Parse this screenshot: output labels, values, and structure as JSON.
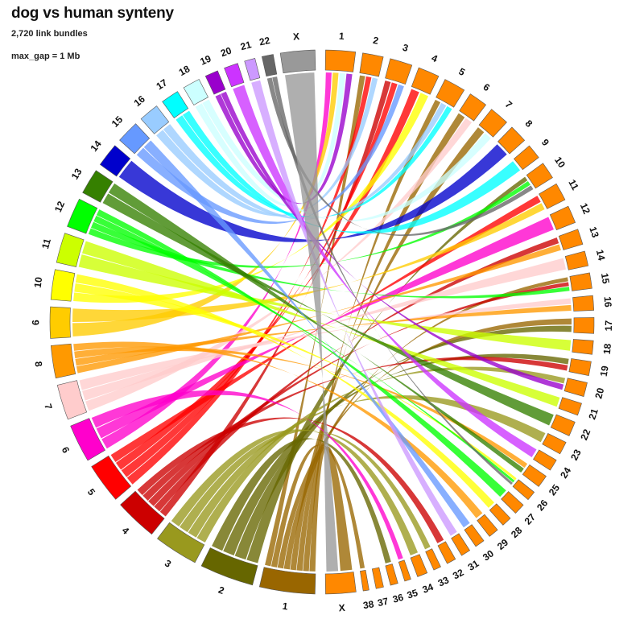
{
  "title": "dog vs human synteny",
  "subtitle": "2,720 link bundles",
  "note": "max_gap = 1 Mb",
  "human_chromosomes": [
    {
      "label": "1",
      "color": "#996600",
      "size": 249
    },
    {
      "label": "2",
      "color": "#666600",
      "size": 243
    },
    {
      "label": "3",
      "color": "#99991e",
      "size": 198
    },
    {
      "label": "4",
      "color": "#cc0000",
      "size": 191
    },
    {
      "label": "5",
      "color": "#ff0000",
      "size": 181
    },
    {
      "label": "6",
      "color": "#ff00cc",
      "size": 171
    },
    {
      "label": "7",
      "color": "#ffcccc",
      "size": 159
    },
    {
      "label": "8",
      "color": "#ff9900",
      "size": 146
    },
    {
      "label": "9",
      "color": "#ffcc00",
      "size": 141
    },
    {
      "label": "10",
      "color": "#ffff00",
      "size": 135
    },
    {
      "label": "11",
      "color": "#ccff00",
      "size": 135
    },
    {
      "label": "12",
      "color": "#00ff00",
      "size": 133
    },
    {
      "label": "13",
      "color": "#358000",
      "size": 115
    },
    {
      "label": "14",
      "color": "#0000cc",
      "size": 107
    },
    {
      "label": "15",
      "color": "#6699ff",
      "size": 102
    },
    {
      "label": "16",
      "color": "#99ccff",
      "size": 90
    },
    {
      "label": "17",
      "color": "#00ffff",
      "size": 81
    },
    {
      "label": "18",
      "color": "#ccffff",
      "size": 78
    },
    {
      "label": "19",
      "color": "#9900cc",
      "size": 59
    },
    {
      "label": "20",
      "color": "#cc33ff",
      "size": 63
    },
    {
      "label": "21",
      "color": "#cc99ff",
      "size": 48
    },
    {
      "label": "22",
      "color": "#666666",
      "size": 51
    },
    {
      "label": "X",
      "color": "#999999",
      "size": 155
    }
  ],
  "dog_chromosomes": [
    {
      "label": "1",
      "size": 122
    },
    {
      "label": "2",
      "size": 85
    },
    {
      "label": "3",
      "size": 92
    },
    {
      "label": "4",
      "size": 88
    },
    {
      "label": "5",
      "size": 89
    },
    {
      "label": "6",
      "size": 77
    },
    {
      "label": "7",
      "size": 81
    },
    {
      "label": "8",
      "size": 74
    },
    {
      "label": "9",
      "size": 61
    },
    {
      "label": "10",
      "size": 70
    },
    {
      "label": "11",
      "size": 74
    },
    {
      "label": "12",
      "size": 72
    },
    {
      "label": "13",
      "size": 64
    },
    {
      "label": "14",
      "size": 61
    },
    {
      "label": "15",
      "size": 64
    },
    {
      "label": "16",
      "size": 60
    },
    {
      "label": "17",
      "size": 65
    },
    {
      "label": "18",
      "size": 56
    },
    {
      "label": "19",
      "size": 58
    },
    {
      "label": "20",
      "size": 58
    },
    {
      "label": "21",
      "size": 51
    },
    {
      "label": "22",
      "size": 61
    },
    {
      "label": "23",
      "size": 53
    },
    {
      "label": "24",
      "size": 48
    },
    {
      "label": "25",
      "size": 52
    },
    {
      "label": "26",
      "size": 39
    },
    {
      "label": "27",
      "size": 46
    },
    {
      "label": "28",
      "size": 41
    },
    {
      "label": "29",
      "size": 42
    },
    {
      "label": "30",
      "size": 40
    },
    {
      "label": "31",
      "size": 39
    },
    {
      "label": "32",
      "size": 38
    },
    {
      "label": "33",
      "size": 31
    },
    {
      "label": "34",
      "size": 42
    },
    {
      "label": "35",
      "size": 26
    },
    {
      "label": "36",
      "size": 31
    },
    {
      "label": "37",
      "size": 31
    },
    {
      "label": "38",
      "size": 24
    },
    {
      "label": "X",
      "size": 124
    }
  ],
  "dog_color": "#ff8800",
  "links": [
    {
      "h": "1",
      "d": "X"
    },
    {
      "h": "1",
      "d": "5"
    },
    {
      "h": "1",
      "d": "6"
    },
    {
      "h": "1",
      "d": "7"
    },
    {
      "h": "1",
      "d": "15"
    },
    {
      "h": "1",
      "d": "17"
    },
    {
      "h": "1",
      "d": "38"
    },
    {
      "h": "1",
      "d": "2"
    },
    {
      "h": "2",
      "d": "10"
    },
    {
      "h": "2",
      "d": "17"
    },
    {
      "h": "2",
      "d": "19"
    },
    {
      "h": "2",
      "d": "36"
    },
    {
      "h": "3",
      "d": "20"
    },
    {
      "h": "3",
      "d": "23"
    },
    {
      "h": "3",
      "d": "33"
    },
    {
      "h": "3",
      "d": "34"
    },
    {
      "h": "4",
      "d": "3"
    },
    {
      "h": "4",
      "d": "13"
    },
    {
      "h": "4",
      "d": "15"
    },
    {
      "h": "4",
      "d": "19"
    },
    {
      "h": "4",
      "d": "32"
    },
    {
      "h": "5",
      "d": "2"
    },
    {
      "h": "5",
      "d": "3"
    },
    {
      "h": "5",
      "d": "4"
    },
    {
      "h": "5",
      "d": "11"
    },
    {
      "h": "6",
      "d": "1"
    },
    {
      "h": "6",
      "d": "12"
    },
    {
      "h": "6",
      "d": "35"
    },
    {
      "h": "7",
      "d": "6"
    },
    {
      "h": "7",
      "d": "14"
    },
    {
      "h": "7",
      "d": "16"
    },
    {
      "h": "8",
      "d": "13"
    },
    {
      "h": "8",
      "d": "16"
    },
    {
      "h": "8",
      "d": "25"
    },
    {
      "h": "8",
      "d": "29"
    },
    {
      "h": "9",
      "d": "1"
    },
    {
      "h": "9",
      "d": "11"
    },
    {
      "h": "10",
      "d": "4"
    },
    {
      "h": "10",
      "d": "26"
    },
    {
      "h": "10",
      "d": "28"
    },
    {
      "h": "11",
      "d": "18"
    },
    {
      "h": "11",
      "d": "21"
    },
    {
      "h": "12",
      "d": "10"
    },
    {
      "h": "12",
      "d": "15"
    },
    {
      "h": "12",
      "d": "26"
    },
    {
      "h": "12",
      "d": "27"
    },
    {
      "h": "13",
      "d": "22"
    },
    {
      "h": "13",
      "d": "25"
    },
    {
      "h": "14",
      "d": "8"
    },
    {
      "h": "15",
      "d": "3"
    },
    {
      "h": "15",
      "d": "30"
    },
    {
      "h": "16",
      "d": "2"
    },
    {
      "h": "16",
      "d": "5"
    },
    {
      "h": "17",
      "d": "5"
    },
    {
      "h": "17",
      "d": "9"
    },
    {
      "h": "18",
      "d": "1"
    },
    {
      "h": "18",
      "d": "7"
    },
    {
      "h": "19",
      "d": "1"
    },
    {
      "h": "19",
      "d": "20"
    },
    {
      "h": "20",
      "d": "24"
    },
    {
      "h": "21",
      "d": "31"
    },
    {
      "h": "22",
      "d": "10"
    },
    {
      "h": "22",
      "d": "26"
    },
    {
      "h": "X",
      "d": "X"
    }
  ]
}
